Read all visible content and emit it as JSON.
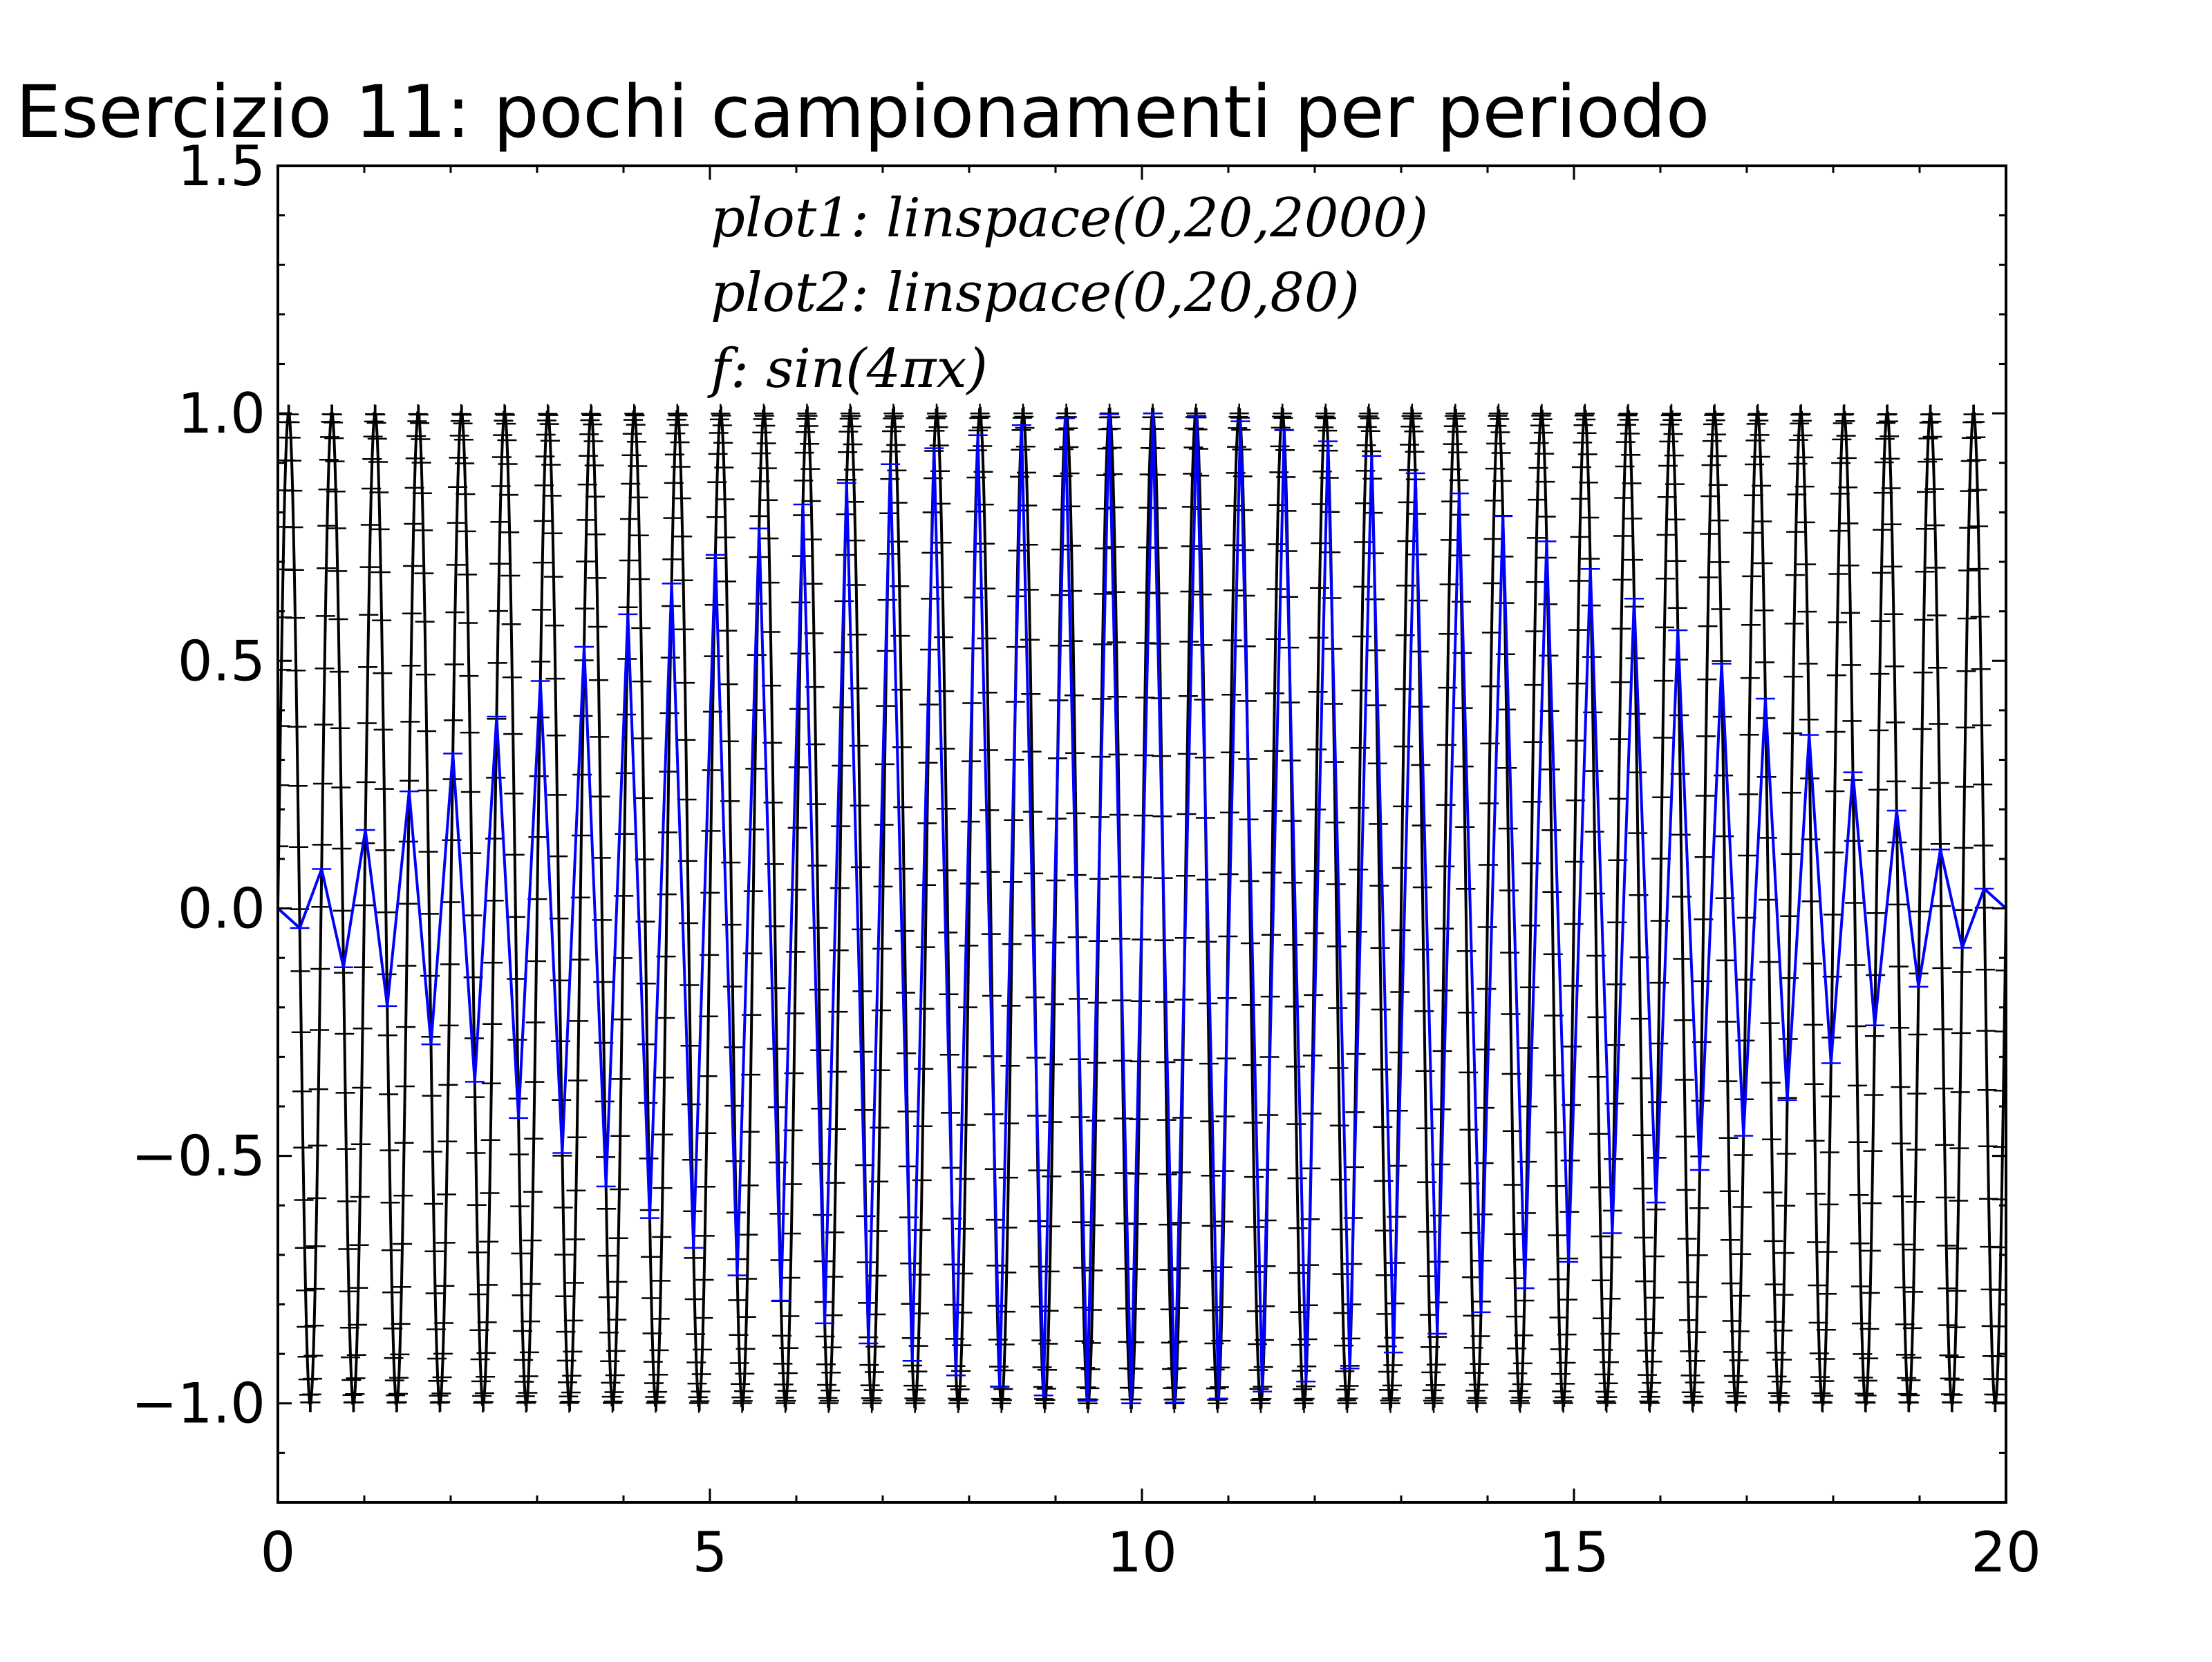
{
  "chart_data": {
    "type": "line",
    "title": "Esercizio 11: pochi campionamenti per periodo",
    "xlabel": "",
    "ylabel": "",
    "xlim": [
      0,
      20
    ],
    "ylim": [
      -1.2,
      1.5
    ],
    "x_ticks": [
      "0",
      "5",
      "10",
      "15",
      "20"
    ],
    "x_tick_values": [
      0,
      5,
      10,
      15,
      20
    ],
    "y_ticks": [
      "1.5",
      "1.0",
      "0.5",
      "0.0",
      "−0.5",
      "−1.0"
    ],
    "y_tick_values": [
      1.5,
      1.0,
      0.5,
      0.0,
      -0.5,
      -1.0
    ],
    "annotations": [
      "plot1: linspace(0,20,2000)",
      "plot2: linspace(0,20,80)",
      "f: sin(4πx)"
    ],
    "grid": false,
    "legend": "none",
    "series": [
      {
        "function": "sin(4*pi*x)",
        "x_start": 0,
        "x_end": 20,
        "samples": 2000,
        "color": "#000000",
        "marker": "+"
      },
      {
        "function": "sin(4*pi*x)",
        "x_start": 0,
        "x_end": 20,
        "samples": 80,
        "color": "#0000ff",
        "marker": "_"
      }
    ]
  }
}
